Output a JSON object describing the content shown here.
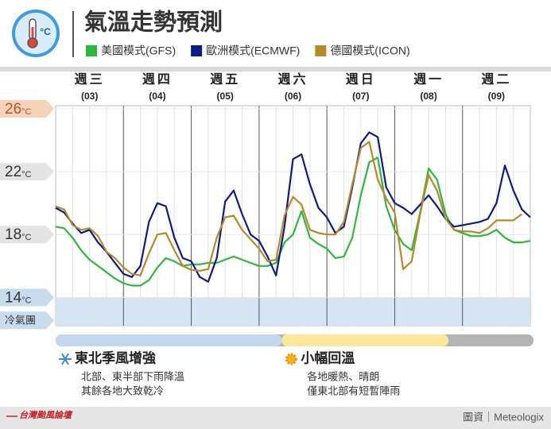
{
  "chart_data": {
    "type": "line",
    "title": "氣溫走勢預測",
    "y_unit": "°C",
    "categories": [
      "週三",
      "週四",
      "週五",
      "週六",
      "週日",
      "週一",
      "週二"
    ],
    "dates": [
      "(03)",
      "(04)",
      "(05)",
      "(06)",
      "(07)",
      "(08)",
      "(09)"
    ],
    "x": [
      0,
      3,
      6,
      9,
      12,
      15,
      18,
      21,
      24,
      27,
      30,
      33,
      36,
      39,
      42,
      45,
      48,
      51,
      54,
      57,
      60,
      63,
      66,
      69,
      72,
      75,
      78,
      81,
      84,
      87,
      90,
      93,
      96,
      99,
      102,
      105,
      108,
      111,
      114,
      117,
      120,
      123,
      126,
      129,
      132,
      135,
      138,
      141,
      144,
      147,
      150,
      153,
      156,
      159,
      162,
      165,
      168
    ],
    "xlim": [
      0,
      168
    ],
    "ylim": [
      12.2,
      26.2
    ],
    "yticks": [
      14,
      18,
      22,
      26
    ],
    "ytick_colors": [
      "#c9dcee",
      "#e4e4e4",
      "#e4e4e4",
      "#f6d2b8"
    ],
    "cold_band": {
      "label": "冷氣團",
      "max": 14,
      "color": "#d6e5f3"
    },
    "series": [
      {
        "name": "美國模式(GFS)",
        "color": "#2db83d",
        "values": [
          18.5,
          18.4,
          17.8,
          17.0,
          16.4,
          16.0,
          15.6,
          15.2,
          14.9,
          14.75,
          14.75,
          15.1,
          15.9,
          16.5,
          16.3,
          16.0,
          16.1,
          16.1,
          16.2,
          16.2,
          16.4,
          16.6,
          16.4,
          16.2,
          16.0,
          16.0,
          16.2,
          17.5,
          18.0,
          19.5,
          17.8,
          17.4,
          17.1,
          16.5,
          16.6,
          17.8,
          20.5,
          22.6,
          22.9,
          19.8,
          18.3,
          17.4,
          17.0,
          19.4,
          22.2,
          21.5,
          19.3,
          18.3,
          18.1,
          17.9,
          17.9,
          18.0,
          18.3,
          17.8,
          17.5,
          17.5,
          17.6
        ]
      },
      {
        "name": "歐洲模式(ECMWF)",
        "color": "#0d1a8c",
        "values": [
          19.7,
          19.4,
          18.7,
          18.1,
          18.3,
          17.5,
          16.9,
          16.2,
          15.5,
          15.3,
          16.0,
          18.8,
          20.0,
          19.8,
          17.8,
          16.5,
          16.3,
          15.3,
          15.0,
          16.5,
          20.1,
          20.8,
          19.3,
          18.0,
          17.6,
          16.6,
          15.4,
          18.5,
          22.8,
          23.1,
          21.2,
          19.7,
          19.1,
          18.1,
          18.5,
          21.0,
          23.8,
          24.5,
          24.2,
          21.0,
          20.0,
          19.7,
          19.3,
          19.9,
          20.5,
          19.8,
          19.0,
          18.5,
          18.6,
          18.7,
          18.8,
          19.0,
          20.0,
          22.4,
          20.8,
          19.6,
          19.1
        ]
      },
      {
        "name": "德國模式(ICON)",
        "color": "#b8892b",
        "values": [
          19.8,
          19.6,
          18.6,
          18.3,
          18.4,
          17.9,
          16.9,
          16.5,
          15.9,
          15.5,
          15.4,
          16.8,
          18.0,
          18.1,
          17.0,
          16.0,
          15.75,
          15.7,
          15.8,
          17.8,
          19.1,
          19.2,
          18.3,
          17.7,
          17.1,
          16.3,
          16.4,
          19.2,
          20.4,
          19.9,
          18.3,
          18.1,
          18.0,
          18.0,
          18.8,
          21.2,
          23.5,
          23.9,
          21.5,
          20.3,
          19.4,
          15.8,
          16.3,
          19.3,
          21.8,
          20.8,
          19.0,
          18.3,
          18.2,
          18.2,
          18.1,
          18.4,
          18.9,
          18.9,
          18.9,
          19.3,
          null
        ]
      }
    ],
    "periods": [
      {
        "name": "東北季風增強",
        "notes": [
          "北部、東半部下雨降溫",
          "其餘各地大致乾冷"
        ],
        "color": "#c2d8ee",
        "from": 0,
        "to": 80
      },
      {
        "name": "小幅回溫",
        "notes": [
          "各地暖熱、晴朗",
          "僅東北部有短暫陣雨"
        ],
        "color": "#fce79b",
        "from": 80,
        "to": 139
      }
    ],
    "period_bar_color": "#b4b4b4",
    "logo": "台灣颱風論壇",
    "source": "圖資｜Meteologix"
  }
}
